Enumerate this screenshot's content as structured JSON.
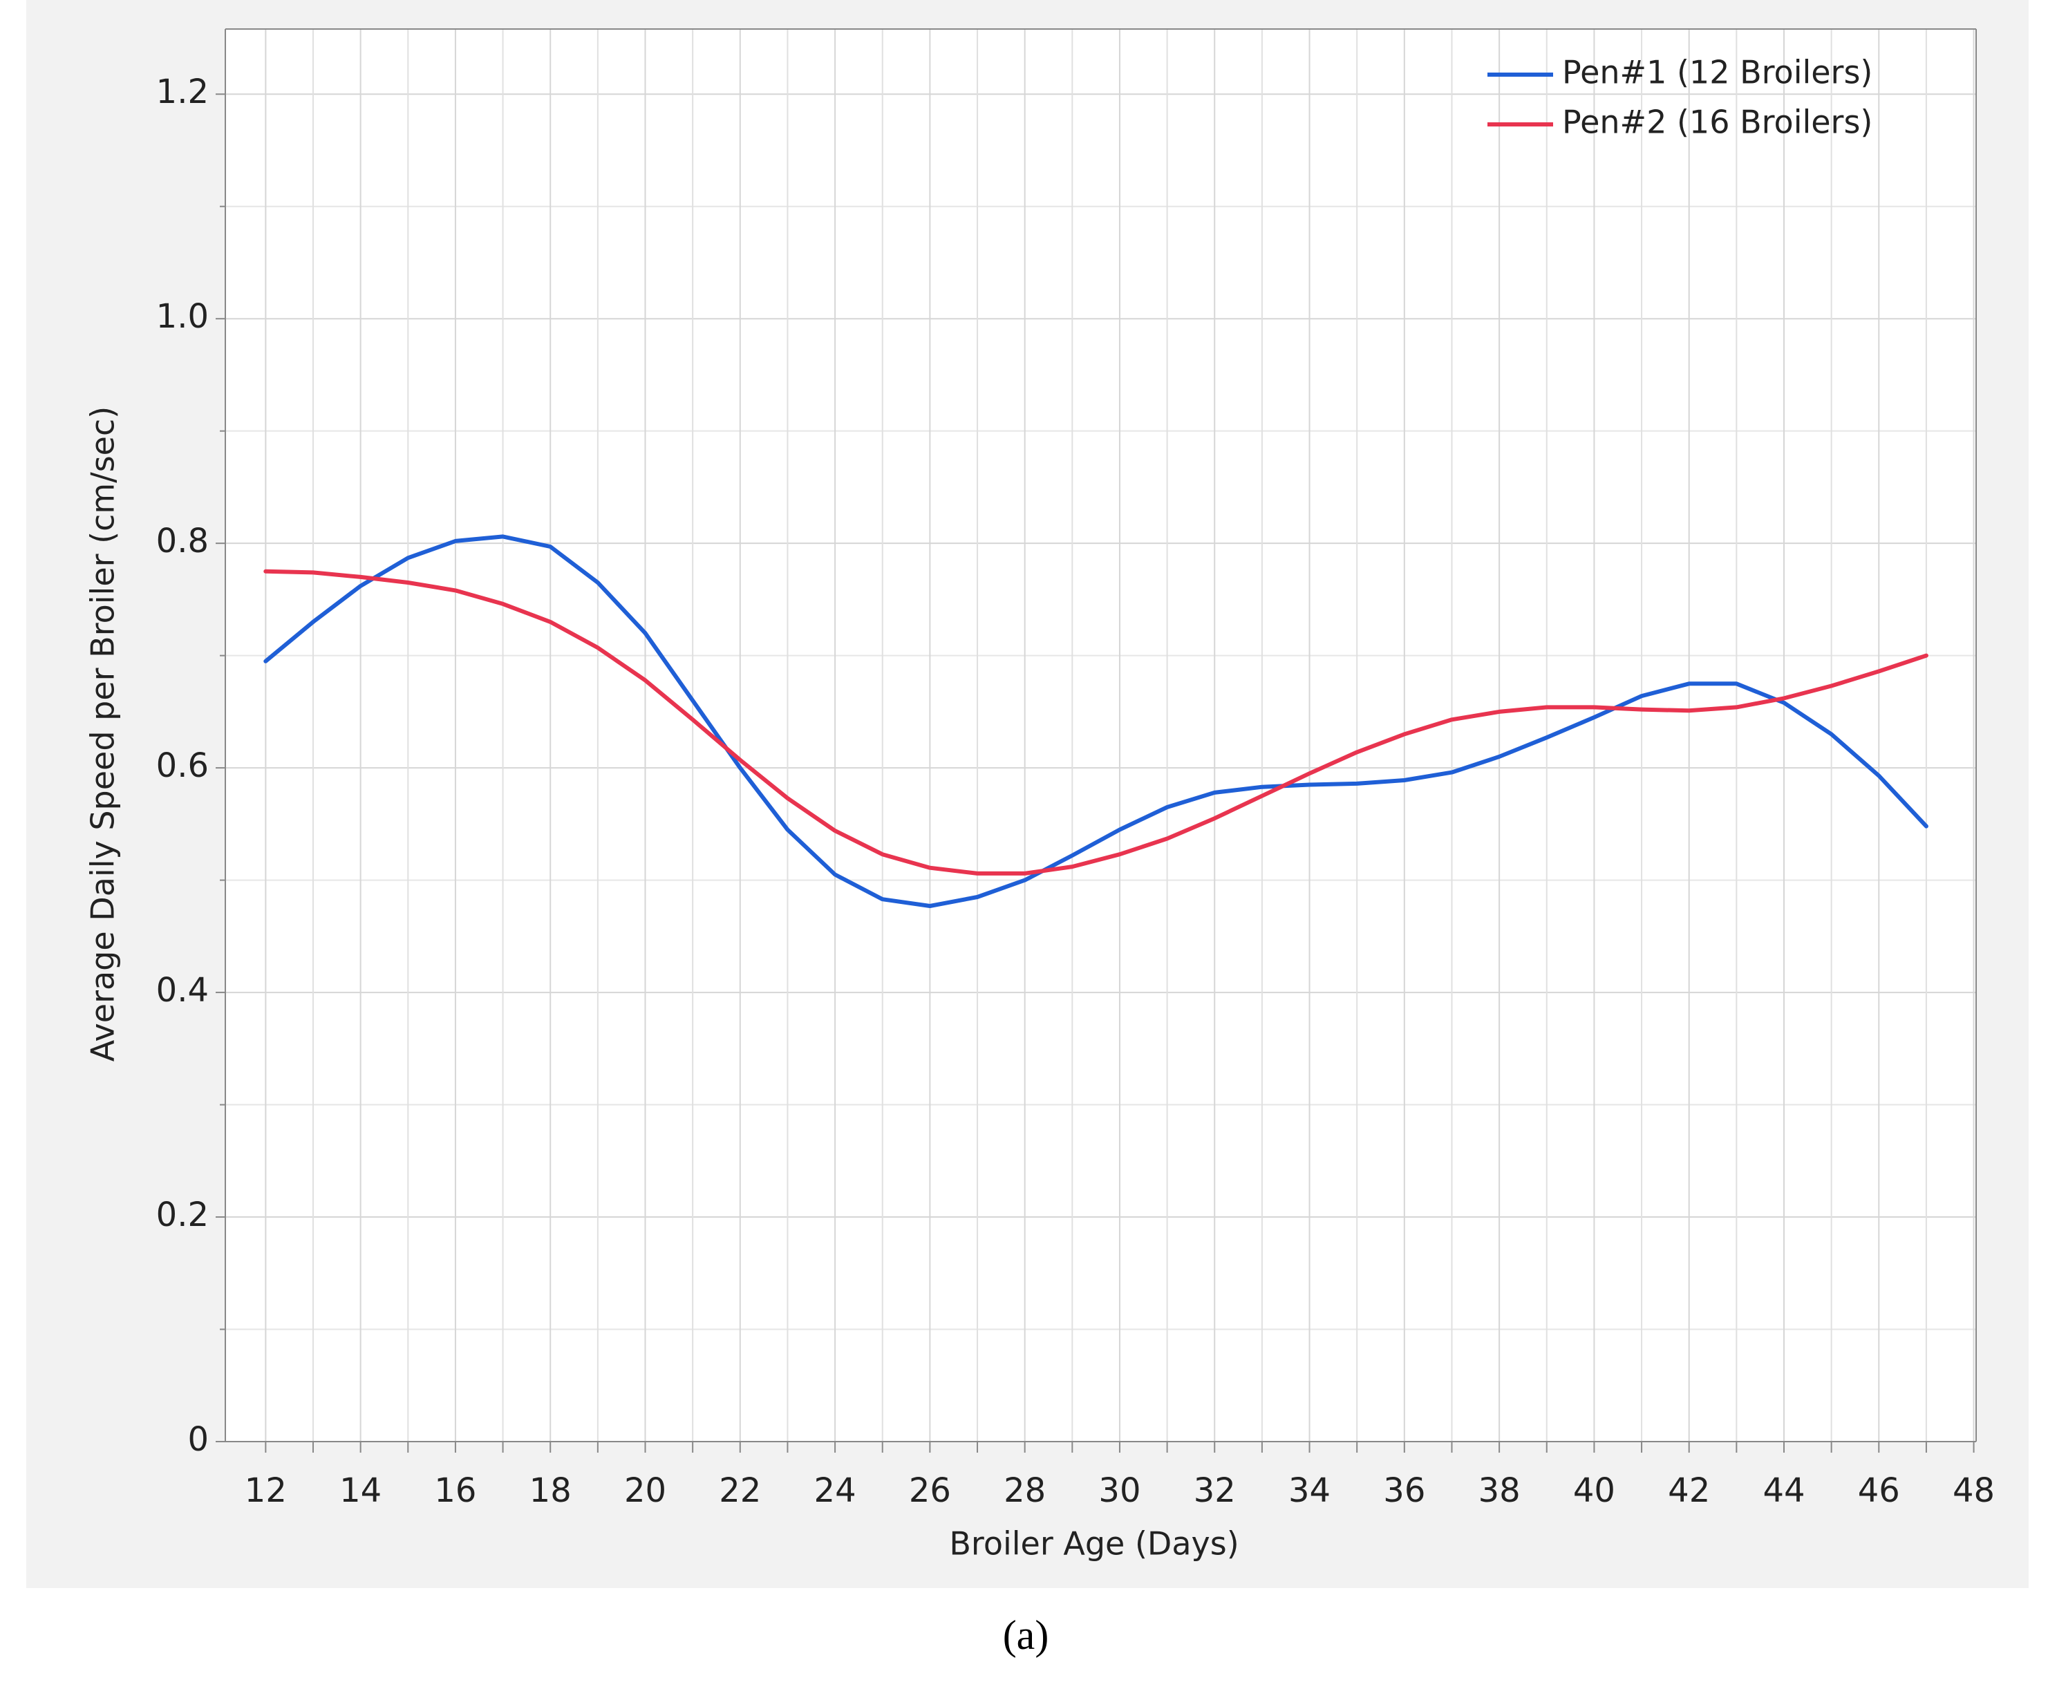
{
  "chart_data": {
    "type": "line",
    "caption": "(a)",
    "x_label": "Broiler Age (Days)",
    "y_label": "Average Daily Speed per Broiler (cm/sec)",
    "x": [
      12,
      13,
      14,
      15,
      16,
      17,
      18,
      19,
      20,
      21,
      22,
      23,
      24,
      25,
      26,
      27,
      28,
      29,
      30,
      31,
      32,
      33,
      34,
      35,
      36,
      37,
      38,
      39,
      40,
      41,
      42,
      43,
      44,
      45,
      46,
      47
    ],
    "series": [
      {
        "name": "Pen#1 (12 Broilers)",
        "color": "#1f5fd6",
        "values": [
          0.695,
          0.73,
          0.762,
          0.787,
          0.802,
          0.806,
          0.797,
          0.765,
          0.72,
          0.66,
          0.6,
          0.545,
          0.505,
          0.483,
          0.477,
          0.485,
          0.5,
          0.522,
          0.545,
          0.565,
          0.578,
          0.583,
          0.585,
          0.586,
          0.589,
          0.596,
          0.61,
          0.627,
          0.645,
          0.664,
          0.675,
          0.675,
          0.658,
          0.63,
          0.593,
          0.548
        ]
      },
      {
        "name": "Pen#2 (16 Broilers)",
        "color": "#e8344f",
        "values": [
          0.775,
          0.774,
          0.77,
          0.765,
          0.758,
          0.746,
          0.73,
          0.707,
          0.678,
          0.643,
          0.607,
          0.573,
          0.544,
          0.523,
          0.511,
          0.506,
          0.506,
          0.512,
          0.523,
          0.537,
          0.555,
          0.575,
          0.595,
          0.614,
          0.63,
          0.643,
          0.65,
          0.654,
          0.654,
          0.652,
          0.651,
          0.654,
          0.662,
          0.673,
          0.686,
          0.7
        ]
      }
    ],
    "xlim": [
      11.15,
      48.05
    ],
    "ylim": [
      0,
      1.258
    ],
    "xticks": [
      12,
      14,
      16,
      18,
      20,
      22,
      24,
      26,
      28,
      30,
      32,
      34,
      36,
      38,
      40,
      42,
      44,
      46,
      48
    ],
    "x_minor_ticks": [
      13,
      15,
      17,
      19,
      21,
      23,
      25,
      27,
      29,
      31,
      33,
      35,
      37,
      39,
      41,
      43,
      45,
      47
    ],
    "yticks": [
      {
        "value": 0,
        "label": "0"
      },
      0.2,
      0.4,
      0.6,
      0.8,
      {
        "value": 1,
        "label": "1.0"
      },
      1.2
    ],
    "y_minor_ticks": [
      0.1,
      0.3,
      0.5,
      0.7,
      0.9,
      1.1
    ],
    "grid": true,
    "legend": "upper right"
  }
}
